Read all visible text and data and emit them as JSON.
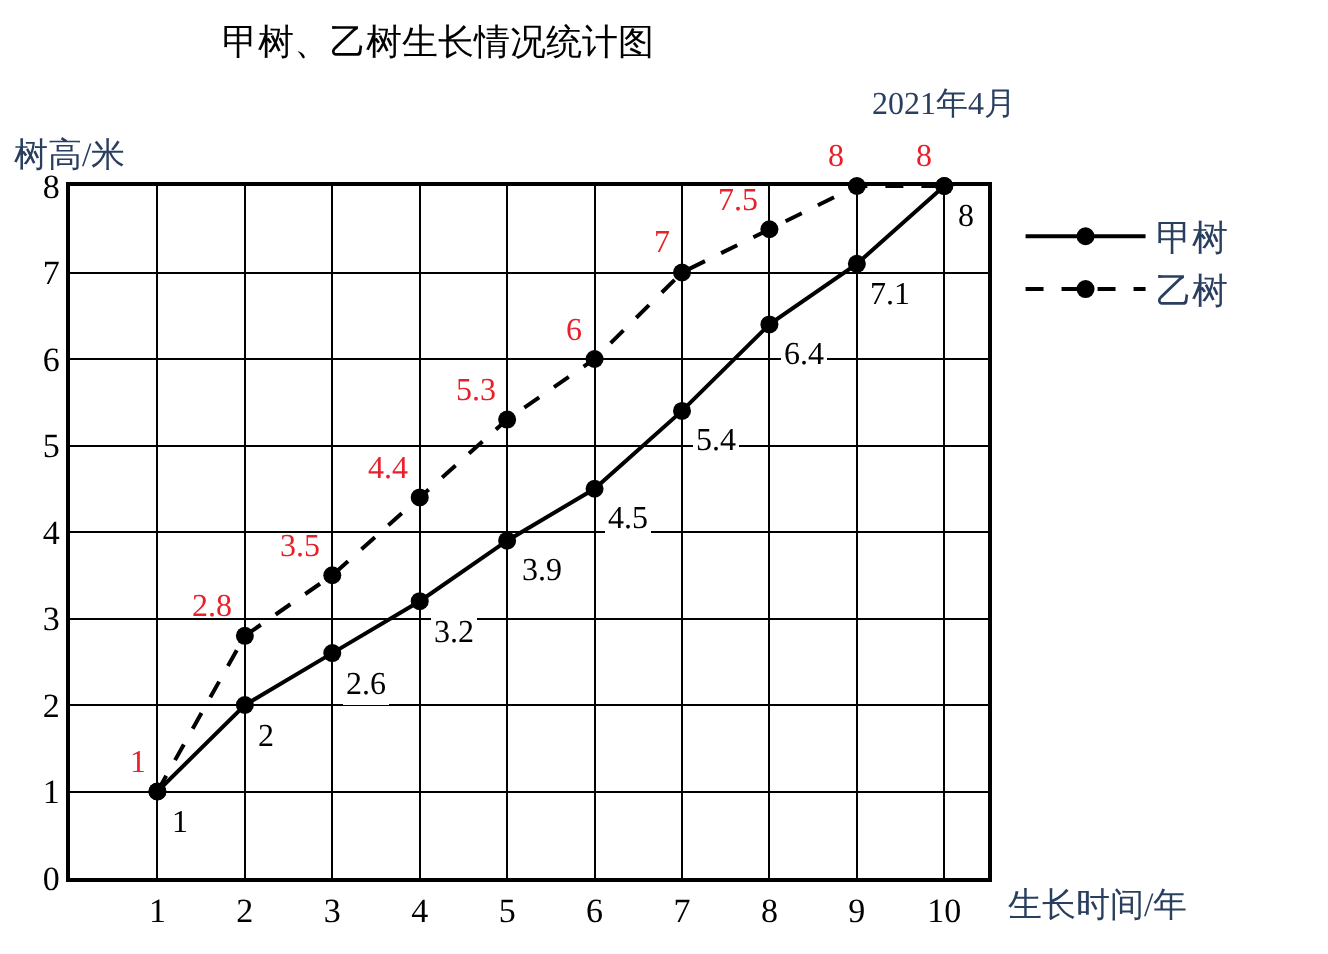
{
  "chart_data": {
    "type": "line",
    "title": "甲树、乙树生长情况统计图",
    "xlabel": "生长时间/年",
    "ylabel": "树高/米",
    "x": [
      1,
      2,
      3,
      4,
      5,
      6,
      7,
      8,
      9,
      10
    ],
    "series": [
      {
        "name": "甲树",
        "color": "#000000",
        "line_style": "solid",
        "values": [
          1,
          2,
          2.6,
          3.2,
          3.9,
          4.5,
          5.4,
          6.4,
          7.1,
          8
        ]
      },
      {
        "name": "乙树",
        "color": "#000000",
        "line_style": "dashed",
        "values": [
          1,
          2.8,
          3.5,
          4.4,
          5.3,
          6,
          7,
          7.5,
          8,
          8
        ]
      }
    ],
    "xlim": [
      0,
      10.5
    ],
    "xticks": [
      1,
      2,
      3,
      4,
      5,
      6,
      7,
      8,
      9,
      10
    ],
    "ylim": [
      0,
      8
    ],
    "yticks": [
      0,
      1,
      2,
      3,
      4,
      5,
      6,
      7,
      8
    ],
    "grid": true,
    "legend": "top right",
    "marker": "circle",
    "data_labels": true,
    "annotations": [
      {
        "text": "2021年4月",
        "x": 10,
        "y": 8
      }
    ]
  }
}
